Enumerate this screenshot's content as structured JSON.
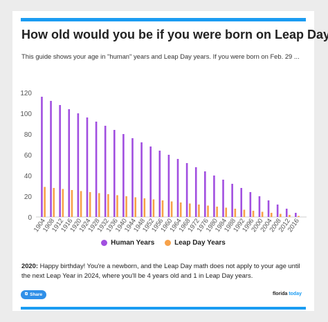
{
  "title": "How old would you be if you were born on Leap Day?",
  "subtitle": "This guide shows your age in \"human\" years and Leap Day years. If you were born on Feb. 29 ...",
  "colors": {
    "accent": "#1b9cf2",
    "human": "#a14fe0",
    "leap": "#f7a24a"
  },
  "chart_data": {
    "type": "bar",
    "categories": [
      "1904",
      "1908",
      "1912",
      "1916",
      "1920",
      "1924",
      "1928",
      "1932",
      "1936",
      "1940",
      "1944",
      "1948",
      "1952",
      "1956",
      "1960",
      "1964",
      "1968",
      "1972",
      "1976",
      "1980",
      "1984",
      "1988",
      "1992",
      "1996",
      "2000",
      "2004",
      "2008",
      "2012",
      "2016"
    ],
    "series": [
      {
        "name": "Human Years",
        "values": [
          116,
          112,
          108,
          104,
          100,
          96,
          92,
          88,
          84,
          80,
          76,
          72,
          68,
          64,
          60,
          56,
          52,
          48,
          44,
          40,
          36,
          32,
          28,
          24,
          20,
          16,
          12,
          8,
          4
        ]
      },
      {
        "name": "Leap Day Years",
        "values": [
          29,
          28,
          27,
          26,
          25,
          24,
          23,
          22,
          21,
          20,
          19,
          18,
          17,
          16,
          15,
          14,
          13,
          12,
          11,
          10,
          9,
          8,
          7,
          6,
          5,
          4,
          3,
          2,
          1
        ]
      }
    ],
    "yticks": [
      "120",
      "100",
      "80",
      "60",
      "40",
      "20",
      "0"
    ],
    "ylim": [
      0,
      120
    ],
    "grid": false,
    "legend": "bottom"
  },
  "legend": {
    "human": "Human Years",
    "leap": "Leap Day Years"
  },
  "note": {
    "bold": "2020:",
    "text": " Happy birthday! You're a newborn, and the Leap Day math does not apply to your age until the next Leap Year in 2024, where you'll be 4 years old and 1 in Leap Day years."
  },
  "share_label": "Share",
  "share_icon": "share-icon",
  "brand": {
    "name": "florida",
    "accent": "today"
  }
}
